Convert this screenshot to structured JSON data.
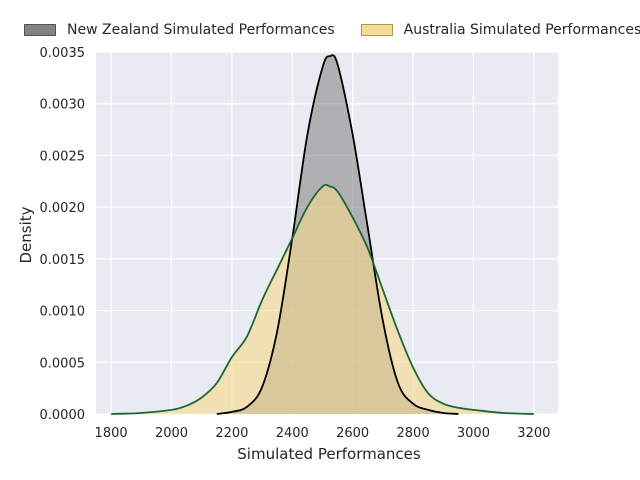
{
  "chart_data": {
    "type": "area",
    "xlabel": "Simulated Performances",
    "ylabel": "Density",
    "xlim": [
      1750,
      3280
    ],
    "ylim": [
      0,
      0.0035
    ],
    "xticks": [
      1800,
      2000,
      2200,
      2400,
      2600,
      2800,
      3000,
      3200
    ],
    "yticks": [
      0.0,
      0.0005,
      0.001,
      0.0015,
      0.002,
      0.0025,
      0.003,
      0.0035
    ],
    "ytick_labels": [
      "0.0000",
      "0.0005",
      "0.0010",
      "0.0015",
      "0.0020",
      "0.0025",
      "0.0030",
      "0.0035"
    ],
    "grid": true,
    "legend_position": "top",
    "series": [
      {
        "name": "New Zealand Simulated Performances",
        "fill_color": "#808080",
        "line_color": "#000000",
        "x": [
          2150,
          2200,
          2250,
          2300,
          2350,
          2400,
          2450,
          2500,
          2525,
          2550,
          2600,
          2650,
          2700,
          2750,
          2800,
          2850,
          2900,
          2950
        ],
        "y": [
          0.0,
          2e-05,
          7e-05,
          0.00026,
          0.0008,
          0.0017,
          0.0027,
          0.00335,
          0.00346,
          0.00338,
          0.0027,
          0.0018,
          0.0009,
          0.0003,
          0.0001,
          4e-05,
          1e-05,
          0.0
        ]
      },
      {
        "name": "Australia Simulated Performances",
        "fill_color": "#f5d98a",
        "line_color": "#1f6637",
        "x": [
          1800,
          1900,
          2000,
          2050,
          2100,
          2150,
          2200,
          2250,
          2300,
          2350,
          2400,
          2450,
          2500,
          2525,
          2550,
          2600,
          2650,
          2700,
          2750,
          2800,
          2850,
          2900,
          2950,
          3000,
          3100,
          3200
        ],
        "y": [
          0.0,
          1e-05,
          4e-05,
          8e-05,
          0.00016,
          0.0003,
          0.00055,
          0.00075,
          0.0011,
          0.0014,
          0.0017,
          0.002,
          0.0022,
          0.0022,
          0.00215,
          0.0019,
          0.0016,
          0.0012,
          0.0008,
          0.00045,
          0.0002,
          0.0001,
          6e-05,
          4e-05,
          1e-05,
          0.0
        ]
      }
    ]
  }
}
